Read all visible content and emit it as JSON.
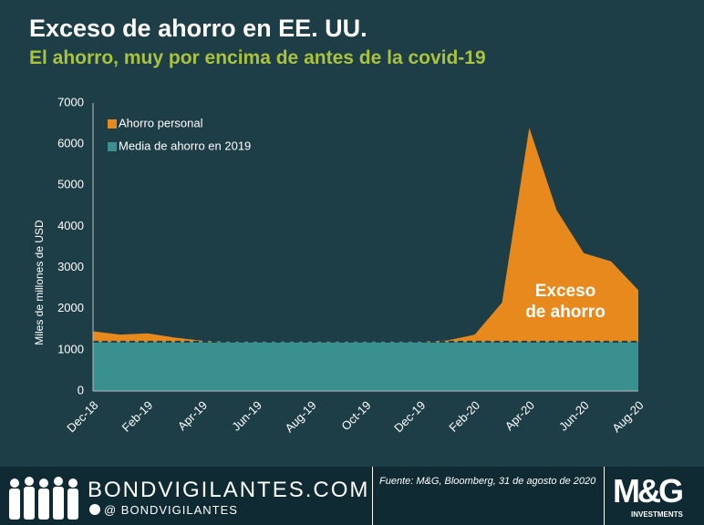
{
  "chart_data": {
    "type": "area",
    "title": "Exceso de ahorro en EE. UU.",
    "subtitle": "El ahorro, muy por encima de antes de la covid-19",
    "y_label": "Miles de millones de USD",
    "annotation": "Exceso de ahorro",
    "categories": [
      "Dec-18",
      null,
      "Feb-19",
      null,
      "Apr-19",
      null,
      "Jun-19",
      null,
      "Aug-19",
      null,
      "Oct-19",
      null,
      "Dec-19",
      null,
      "Feb-20",
      null,
      "Apr-20",
      null,
      "Jun-20",
      null,
      "Aug-20"
    ],
    "series": [
      {
        "name": "Ahorro personal",
        "color": "#e8891e",
        "values": [
          1450,
          1370,
          1400,
          1300,
          1220,
          1200,
          1200,
          1200,
          1200,
          1200,
          1200,
          1200,
          1200,
          1230,
          1370,
          2150,
          6400,
          4400,
          3350,
          3150,
          2450
        ]
      },
      {
        "name": "Media de ahorro en 2019",
        "color": "#3a8f8f",
        "values": [
          1200,
          1200,
          1200,
          1200,
          1200,
          1200,
          1200,
          1200,
          1200,
          1200,
          1200,
          1200,
          1200,
          1200,
          1200,
          1200,
          1200,
          1200,
          1200,
          1200,
          1200
        ]
      }
    ],
    "ylim": [
      0,
      7000
    ],
    "yticks": [
      0,
      1000,
      2000,
      3000,
      4000,
      5000,
      6000,
      7000
    ],
    "grid": false,
    "legend": "top-left"
  },
  "footer": {
    "site": "BONDVIGILANTES.COM",
    "handle": "@ BONDVIGILANTES",
    "source": "Fuente: M&G, Bloomberg, 31 de agosto de 2020",
    "logo": "M&G",
    "logo_sub": "INVESTMENTS"
  }
}
